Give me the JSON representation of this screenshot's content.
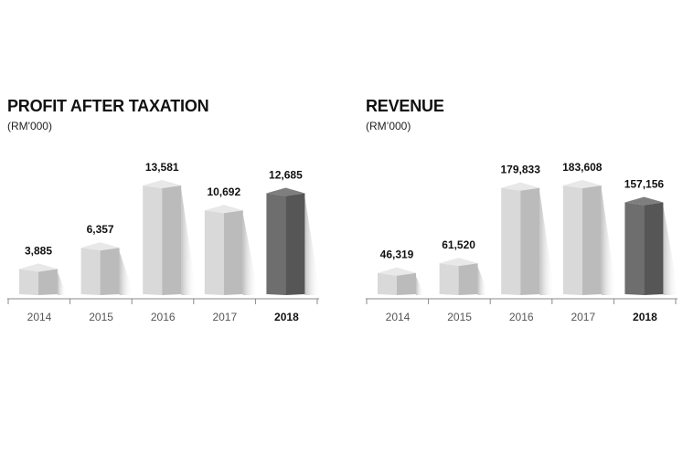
{
  "chart_data": [
    {
      "type": "bar",
      "title": "PROFIT AFTER TAXATION",
      "subtitle": "(RM'000)",
      "categories": [
        "2014",
        "2015",
        "2016",
        "2017",
        "2018"
      ],
      "values": [
        3885,
        6357,
        13581,
        10692,
        12685
      ],
      "value_labels": [
        "3,885",
        "6,357",
        "13,581",
        "10,692",
        "12,685"
      ],
      "highlight": "2018",
      "ylim": [
        0,
        15000
      ],
      "colors": {
        "bar": "#d9d9d9",
        "highlight": "#6e6e6e"
      }
    },
    {
      "type": "bar",
      "title": "REVENUE",
      "subtitle": "(RM’000)",
      "categories": [
        "2014",
        "2015",
        "2016",
        "2017",
        "2018"
      ],
      "values": [
        46319,
        61520,
        179833,
        183608,
        157156
      ],
      "value_labels": [
        "46,319",
        "61,520",
        "179,833",
        "183,608",
        "157,156"
      ],
      "highlight": "2018",
      "ylim": [
        0,
        200000
      ],
      "colors": {
        "bar": "#d9d9d9",
        "highlight": "#6e6e6e"
      }
    }
  ]
}
